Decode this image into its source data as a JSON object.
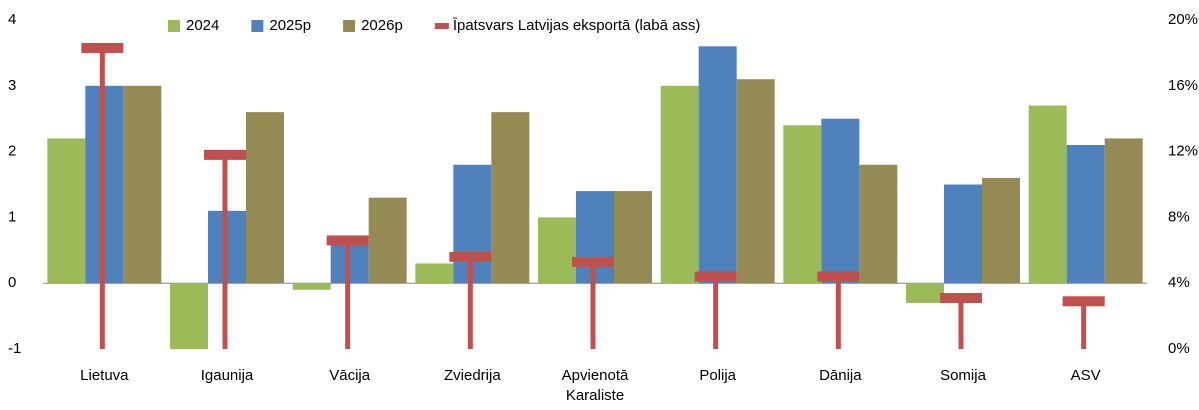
{
  "chart_data": {
    "type": "bar",
    "categories": [
      "Lietuva",
      "Igaunija",
      "Vācija",
      "Zviedrija",
      "Apvienotā Karaliste",
      "Polija",
      "Dānija",
      "Somija",
      "ASV"
    ],
    "series": [
      {
        "name": "2024",
        "color": "#9bbb59",
        "values": [
          2.2,
          -1.0,
          -0.1,
          0.3,
          1.0,
          3.0,
          2.4,
          -0.3,
          2.7
        ]
      },
      {
        "name": "2025p",
        "color": "#4f81bd",
        "values": [
          3.0,
          1.1,
          0.6,
          1.8,
          1.4,
          3.6,
          2.5,
          1.5,
          2.1
        ]
      },
      {
        "name": "2026p",
        "color": "#948a54",
        "values": [
          3.0,
          2.6,
          1.3,
          2.6,
          1.4,
          3.1,
          1.8,
          1.6,
          2.2
        ]
      },
      {
        "name": "Īpatsvars Latvijas eksportā (labā ass)",
        "color": "#c0504d",
        "axis": "y2",
        "values": [
          18.3,
          11.8,
          6.6,
          5.6,
          5.3,
          4.4,
          4.4,
          3.1,
          2.9
        ]
      }
    ],
    "ylim": [
      -1,
      4
    ],
    "yticks": [
      -1,
      0,
      1,
      2,
      3,
      4
    ],
    "y2lim": [
      0,
      20
    ],
    "y2ticks": [
      {
        "value": 0,
        "label": "0%"
      },
      {
        "value": 4,
        "label": "4%"
      },
      {
        "value": 8,
        "label": "8%"
      },
      {
        "value": 12,
        "label": "12%"
      },
      {
        "value": 16,
        "label": "16%"
      },
      {
        "value": 20,
        "label": "20%"
      }
    ],
    "legend": "top",
    "grid": false
  }
}
